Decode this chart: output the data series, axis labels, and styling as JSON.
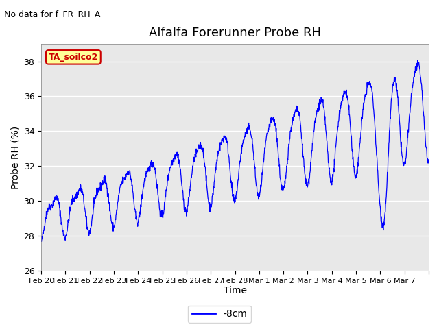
{
  "title": "Alfalfa Forerunner Probe RH",
  "ylabel": "Probe RH (%)",
  "xlabel": "Time",
  "subtitle": "No data for f_FR_RH_A",
  "legend_label": "-8cm",
  "line_color": "#0000ff",
  "background_color": "#e8e8e8",
  "figure_bg": "#ffffff",
  "ylim": [
    26,
    39
  ],
  "yticks": [
    26,
    28,
    30,
    32,
    34,
    36,
    38
  ],
  "xtick_positions": [
    0,
    1,
    2,
    3,
    4,
    5,
    6,
    7,
    8,
    9,
    10,
    11,
    12,
    13,
    14,
    15,
    16
  ],
  "xtick_labels": [
    "Feb 20",
    "Feb 21",
    "Feb 22",
    "Feb 23",
    "Feb 24",
    "Feb 25",
    "Feb 26",
    "Feb 27",
    "Feb 28",
    "Mar 1",
    "Mar 2",
    "Mar 3",
    "Mar 4",
    "Mar 5",
    "Mar 6",
    "Mar 7",
    ""
  ],
  "box_label": "TA_soilco2",
  "box_color": "#ffff99",
  "box_border_color": "#cc0000",
  "box_text_color": "#cc0000",
  "n_days": 16,
  "pts_per_day": 96
}
